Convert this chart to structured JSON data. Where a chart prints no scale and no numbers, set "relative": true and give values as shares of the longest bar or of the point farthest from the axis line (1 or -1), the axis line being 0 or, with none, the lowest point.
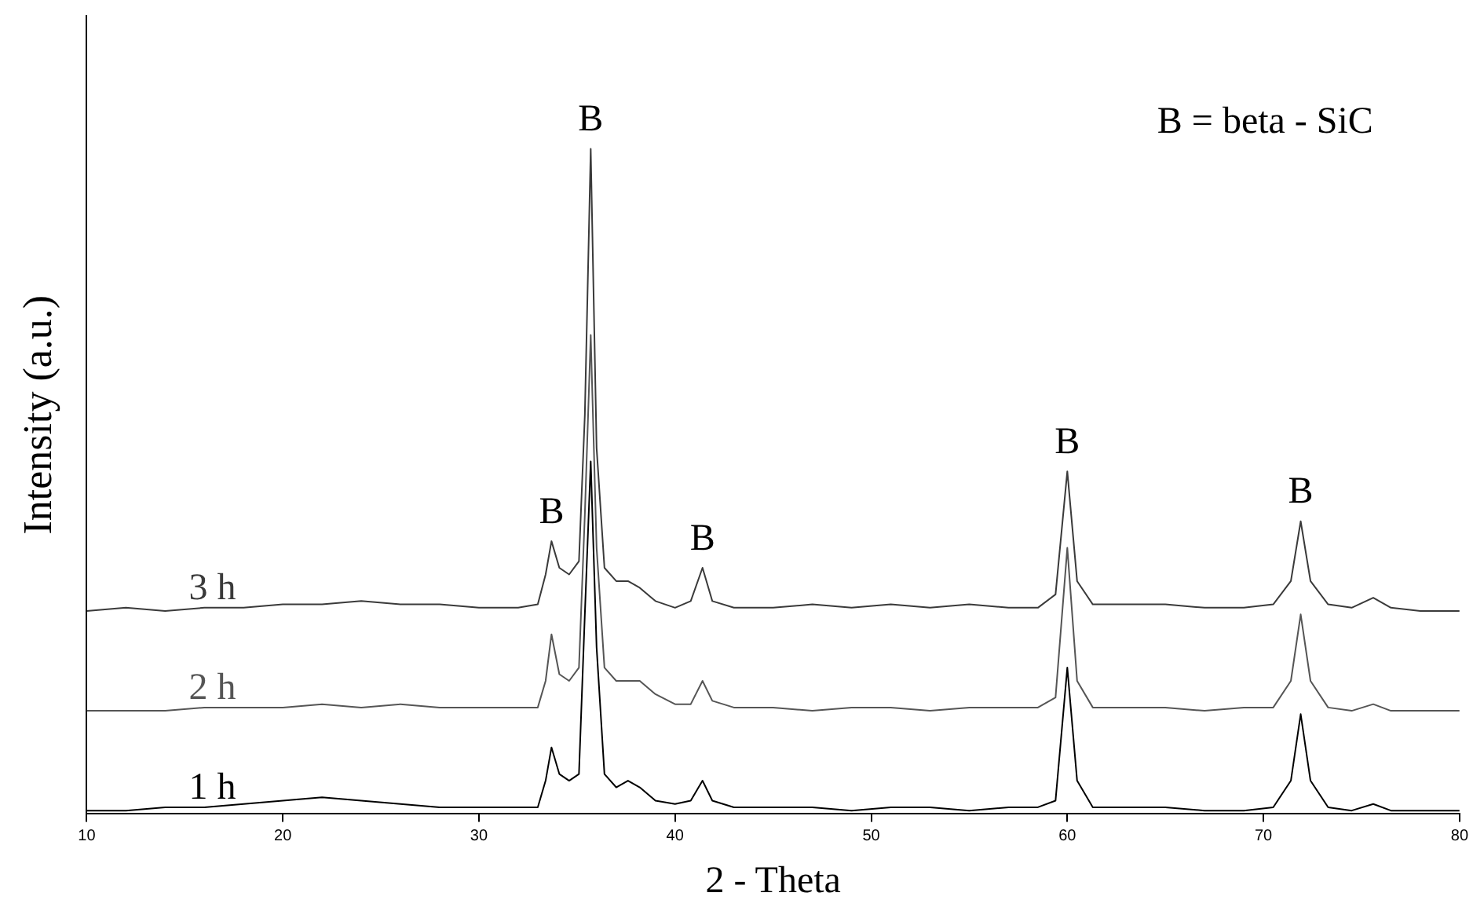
{
  "chart_data": {
    "type": "line",
    "relative": true,
    "xlabel": "2 - Theta",
    "ylabel": "Intensity (a.u.)",
    "x": [
      10,
      12,
      14,
      16,
      18,
      20,
      22,
      24,
      26,
      28,
      30,
      32,
      33,
      33.4,
      33.7,
      34.1,
      34.6,
      35.1,
      35.4,
      35.7,
      36.0,
      36.4,
      37,
      37.6,
      38.2,
      39,
      40,
      40.8,
      41.4,
      41.9,
      43,
      45,
      47,
      49,
      51,
      53,
      55,
      57,
      58.5,
      59.4,
      60,
      60.5,
      61.3,
      63,
      65,
      67,
      69,
      70.5,
      71.4,
      71.9,
      72.4,
      73.3,
      74.5,
      75.6,
      76.5,
      78,
      80
    ],
    "xlim": [
      10,
      80
    ],
    "xticks": [
      10,
      20,
      30,
      40,
      50,
      60,
      70,
      80
    ],
    "grid": false,
    "legend": false,
    "marker": "none",
    "line_style": "solid",
    "series": [
      {
        "name": "3 h",
        "color": "#3a3a3a",
        "values": [
          0.305,
          0.31,
          0.305,
          0.31,
          0.31,
          0.315,
          0.315,
          0.32,
          0.315,
          0.315,
          0.31,
          0.31,
          0.315,
          0.36,
          0.41,
          0.37,
          0.36,
          0.38,
          0.6,
          1.0,
          0.55,
          0.37,
          0.35,
          0.35,
          0.34,
          0.32,
          0.31,
          0.32,
          0.37,
          0.32,
          0.31,
          0.31,
          0.315,
          0.31,
          0.315,
          0.31,
          0.315,
          0.31,
          0.31,
          0.33,
          0.515,
          0.35,
          0.315,
          0.315,
          0.315,
          0.31,
          0.31,
          0.315,
          0.35,
          0.44,
          0.35,
          0.315,
          0.31,
          0.325,
          0.31,
          0.305,
          0.305
        ]
      },
      {
        "name": "2 h",
        "color": "#555555",
        "values": [
          0.155,
          0.155,
          0.155,
          0.16,
          0.16,
          0.16,
          0.165,
          0.16,
          0.165,
          0.16,
          0.16,
          0.16,
          0.16,
          0.2,
          0.27,
          0.21,
          0.2,
          0.22,
          0.45,
          0.72,
          0.4,
          0.22,
          0.2,
          0.2,
          0.2,
          0.18,
          0.165,
          0.165,
          0.2,
          0.17,
          0.16,
          0.16,
          0.155,
          0.16,
          0.16,
          0.155,
          0.16,
          0.16,
          0.16,
          0.175,
          0.4,
          0.2,
          0.16,
          0.16,
          0.16,
          0.155,
          0.16,
          0.16,
          0.2,
          0.3,
          0.2,
          0.16,
          0.155,
          0.165,
          0.155,
          0.155,
          0.155
        ]
      },
      {
        "name": "1 h",
        "color": "#000000",
        "values": [
          0.005,
          0.005,
          0.01,
          0.01,
          0.015,
          0.02,
          0.025,
          0.02,
          0.015,
          0.01,
          0.01,
          0.01,
          0.01,
          0.05,
          0.1,
          0.06,
          0.05,
          0.06,
          0.3,
          0.53,
          0.25,
          0.06,
          0.04,
          0.05,
          0.04,
          0.02,
          0.015,
          0.02,
          0.05,
          0.02,
          0.01,
          0.01,
          0.01,
          0.005,
          0.01,
          0.01,
          0.005,
          0.01,
          0.01,
          0.02,
          0.22,
          0.05,
          0.01,
          0.01,
          0.01,
          0.005,
          0.005,
          0.01,
          0.05,
          0.15,
          0.05,
          0.01,
          0.005,
          0.015,
          0.005,
          0.005,
          0.005
        ]
      }
    ],
    "annotations": [
      {
        "text": "B",
        "x": 35.7,
        "y": 1.0
      },
      {
        "text": "B",
        "x": 33.7,
        "y": 0.41
      },
      {
        "text": "B",
        "x": 41.4,
        "y": 0.37
      },
      {
        "text": "B",
        "x": 60,
        "y": 0.515
      },
      {
        "text": "B",
        "x": 71.9,
        "y": 0.44
      },
      "B = beta - SiC"
    ]
  }
}
